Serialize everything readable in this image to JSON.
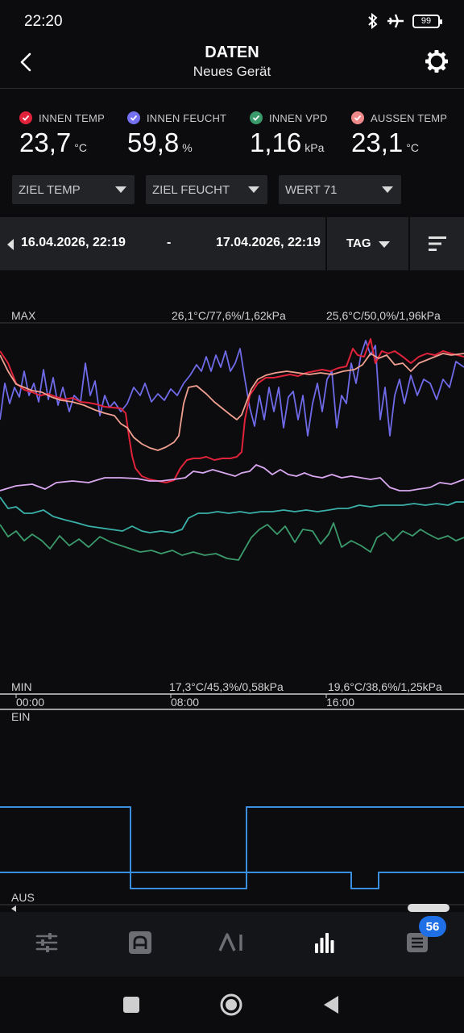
{
  "status": {
    "time": "22:20",
    "battery": "99"
  },
  "header": {
    "title": "DATEN",
    "subtitle": "Neues Gerät"
  },
  "sensors": [
    {
      "label": "INNEN TEMP",
      "value": "23,7",
      "unit": "°C",
      "color": "#e0223a"
    },
    {
      "label": "INNEN FEUCHT",
      "value": "59,8",
      "unit": "%",
      "color": "#7570f0"
    },
    {
      "label": "INNEN VPD",
      "value": "1,16",
      "unit": "kPa",
      "color": "#3b9a6c"
    },
    {
      "label": "AUSSEN TEMP",
      "value": "23,1",
      "unit": "°C",
      "color": "#f08a8a"
    }
  ],
  "dropdowns": [
    {
      "label": "ZIEL TEMP"
    },
    {
      "label": "ZIEL FEUCHT"
    },
    {
      "label": "WERT 71"
    }
  ],
  "range": {
    "start": "16.04.2026, 22:19",
    "separator": "-",
    "end": "17.04.2026, 22:19",
    "period": "TAG"
  },
  "chart": {
    "max_label": "MAX",
    "min_label": "MIN",
    "max_mid": "26,1°C/77,6%/1,62kPa",
    "max_right": "25,6°C/50,0%/1,96kPa",
    "min_mid": "17,3°C/45,3%/0,58kPa",
    "min_right": "19,6°C/38,6%/1,25kPa",
    "x_ticks": [
      "00:00",
      "08:00",
      "16:00"
    ],
    "on_label": "EIN",
    "off_label": "AUS"
  },
  "chart_data": {
    "type": "line",
    "x_ticks": [
      "00:00",
      "08:00",
      "16:00"
    ],
    "series_colors": {
      "innen_temp": "#e0223a",
      "innen_feucht": "#7570f0",
      "aussen_temp": "#f0a090",
      "vpd": "#3b9a6c",
      "lila": "#d9a8f0",
      "tuerkis": "#3ab0a8",
      "schalt": "#3a8fe0"
    }
  },
  "nav": {
    "items": [
      "sliders-icon",
      "device-icon",
      "ai-icon",
      "chart-icon",
      "list-icon"
    ],
    "badge": "56",
    "active_color": "#ffffff",
    "inactive_color": "#6c6e74"
  }
}
